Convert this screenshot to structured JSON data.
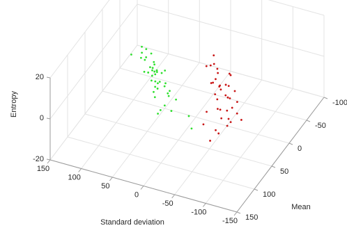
{
  "chart_data": {
    "type": "scatter3d",
    "xlabel": "Standard deviation",
    "ylabel": "Mean",
    "zlabel": "Entropy",
    "xlim": [
      -150,
      150
    ],
    "ylim": [
      -100,
      150
    ],
    "zlim": [
      -20,
      20
    ],
    "xticks": [
      -150,
      -100,
      -50,
      0,
      50,
      100,
      150
    ],
    "yticks": [
      -100,
      -50,
      0,
      50,
      100,
      150
    ],
    "zticks": [
      -20,
      0,
      20
    ],
    "grid": true,
    "series": [
      {
        "color": "#2fe02f",
        "x": [
          60,
          45,
          30,
          52,
          38,
          25,
          70,
          41,
          33,
          55,
          20,
          48,
          36,
          62,
          28,
          44,
          50,
          15,
          39,
          58,
          31,
          47,
          26,
          53,
          35,
          42,
          66,
          22,
          49,
          37,
          57,
          29,
          43,
          34,
          51,
          18,
          46,
          40,
          64,
          27,
          0,
          -10
        ],
        "y": [
          50,
          40,
          35,
          55,
          30,
          45,
          60,
          38,
          28,
          48,
          42,
          33,
          52,
          44,
          25,
          58,
          36,
          30,
          47,
          39,
          62,
          41,
          34,
          29,
          54,
          46,
          37,
          50,
          31,
          43,
          26,
          57,
          35,
          49,
          40,
          38,
          45,
          32,
          28,
          53,
          20,
          30
        ],
        "z": [
          15,
          12,
          8,
          10,
          5,
          3,
          18,
          7,
          0,
          14,
          -2,
          9,
          6,
          16,
          -4,
          11,
          4,
          -6,
          2,
          13,
          1,
          8,
          -3,
          6,
          10,
          -1,
          17,
          -5,
          5,
          3,
          12,
          -8,
          7,
          2,
          9,
          -10,
          4,
          1,
          14,
          -7,
          -15,
          -18
        ]
      },
      {
        "color": "#c81414",
        "x": [
          -40,
          -55,
          -70,
          -50,
          -65,
          -80,
          -45,
          -60,
          -75,
          -35,
          -58,
          -68,
          -52,
          -85,
          -62,
          -48,
          -72,
          -57,
          -66,
          -42,
          -78,
          -54,
          -64,
          -50,
          -70,
          -60,
          -38,
          -82,
          -56,
          -67,
          -46,
          -74,
          -59,
          -63,
          -51,
          -90,
          -44,
          -69
        ],
        "y": [
          20,
          35,
          25,
          40,
          30,
          45,
          28,
          38,
          22,
          32,
          42,
          27,
          36,
          33,
          48,
          24,
          39,
          30,
          26,
          44,
          35,
          29,
          41,
          34,
          31,
          37,
          46,
          28,
          43,
          23,
          38,
          32,
          40,
          27,
          50,
          30,
          36,
          33
        ],
        "z": [
          18,
          14,
          12,
          10,
          8,
          6,
          16,
          9,
          4,
          15,
          3,
          7,
          11,
          2,
          0,
          13,
          -2,
          5,
          1,
          -4,
          -1,
          6,
          -6,
          3,
          -8,
          -3,
          -10,
          -5,
          -12,
          12,
          9,
          -9,
          -14,
          2,
          -16,
          -7,
          17,
          -11
        ]
      }
    ]
  }
}
